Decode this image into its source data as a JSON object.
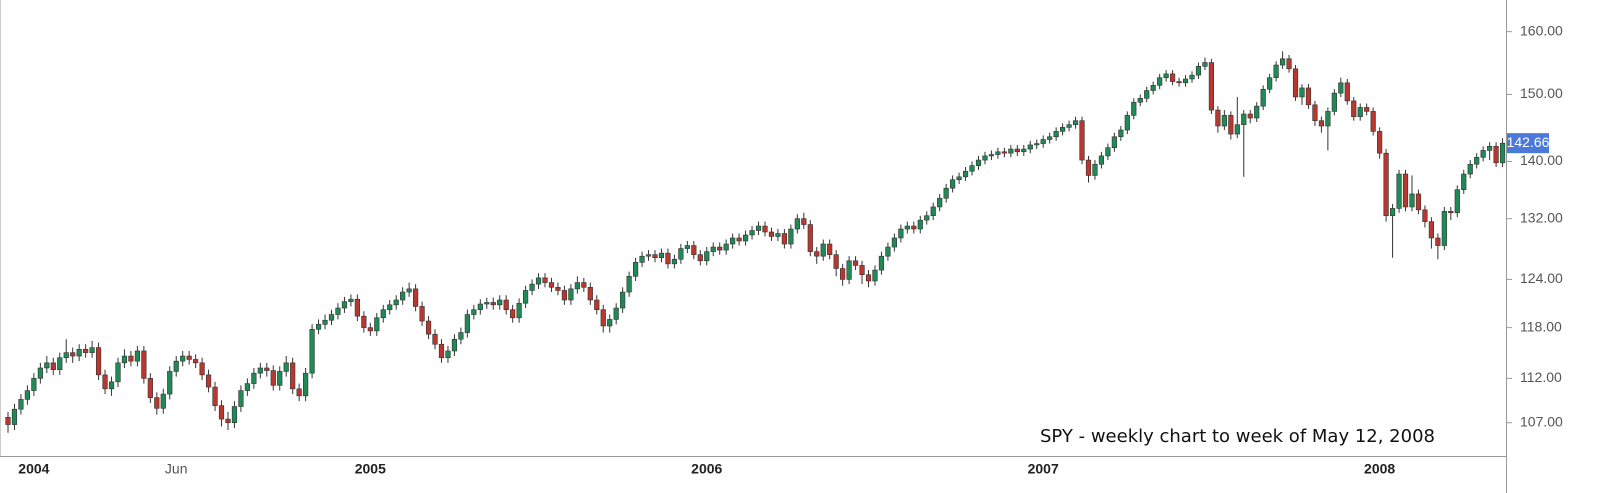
{
  "chart_data": {
    "type": "candlestick",
    "annotation": "SPY - weekly chart to week of May 12, 2008",
    "log_scale": true,
    "grid": false,
    "up_color": "#1f8a55",
    "down_color": "#b8372e",
    "ylim": [
      103.4,
      165.3
    ],
    "yticks": [
      {
        "value": 107,
        "label": "107.00"
      },
      {
        "value": 112,
        "label": "112.00"
      },
      {
        "value": 118,
        "label": "118.00"
      },
      {
        "value": 124,
        "label": "124.00"
      },
      {
        "value": 132,
        "label": "132.00"
      },
      {
        "value": 140,
        "label": "140.00"
      },
      {
        "value": 150,
        "label": "150.00"
      },
      {
        "value": 160,
        "label": "160.00"
      }
    ],
    "categories": [
      null,
      null,
      null,
      null,
      "2004",
      null,
      null,
      null,
      null,
      null,
      null,
      null,
      null,
      null,
      null,
      null,
      null,
      null,
      null,
      null,
      null,
      null,
      null,
      null,
      null,
      null,
      "Jun",
      null,
      null,
      null,
      null,
      null,
      null,
      null,
      null,
      null,
      null,
      null,
      null,
      null,
      null,
      null,
      null,
      null,
      null,
      null,
      null,
      null,
      null,
      null,
      null,
      null,
      null,
      null,
      null,
      null,
      "2005",
      null,
      null,
      null,
      null,
      null,
      null,
      null,
      null,
      null,
      null,
      null,
      null,
      null,
      null,
      null,
      null,
      null,
      null,
      null,
      null,
      null,
      null,
      null,
      null,
      null,
      null,
      null,
      null,
      null,
      null,
      null,
      null,
      null,
      null,
      null,
      null,
      null,
      null,
      null,
      null,
      null,
      null,
      null,
      null,
      null,
      null,
      null,
      null,
      null,
      null,
      null,
      "2006",
      null,
      null,
      null,
      null,
      null,
      null,
      null,
      null,
      null,
      null,
      null,
      null,
      null,
      null,
      null,
      null,
      null,
      null,
      null,
      null,
      null,
      null,
      null,
      null,
      null,
      null,
      null,
      null,
      null,
      null,
      null,
      null,
      null,
      null,
      null,
      null,
      null,
      null,
      null,
      null,
      null,
      null,
      null,
      null,
      null,
      null,
      null,
      null,
      null,
      null,
      null,
      "2007",
      null,
      null,
      null,
      null,
      null,
      null,
      null,
      null,
      null,
      null,
      null,
      null,
      null,
      null,
      null,
      null,
      null,
      null,
      null,
      null,
      null,
      null,
      null,
      null,
      null,
      null,
      null,
      null,
      null,
      null,
      null,
      null,
      null,
      null,
      null,
      null,
      null,
      null,
      null,
      null,
      null,
      null,
      null,
      null,
      null,
      null,
      null,
      null,
      null,
      null,
      null,
      "2008",
      null,
      null,
      null,
      null,
      null,
      null,
      null,
      null,
      null,
      null,
      null,
      null,
      null,
      null,
      null,
      null,
      null,
      null,
      null
    ],
    "open": [
      107.6,
      106.8,
      108.5,
      109.6,
      110.6,
      112.0,
      113.2,
      113.8,
      113.0,
      114.4,
      115.0,
      114.6,
      115.4,
      115.0,
      115.6,
      112.4,
      110.8,
      111.6,
      113.8,
      114.6,
      114.0,
      115.2,
      112.0,
      109.8,
      108.6,
      110.2,
      112.8,
      114.0,
      114.6,
      114.2,
      113.8,
      112.4,
      111.0,
      108.9,
      107.4,
      107.0,
      108.8,
      110.6,
      111.4,
      112.6,
      113.2,
      112.9,
      111.2,
      112.8,
      113.8,
      110.8,
      110.0,
      112.6,
      117.8,
      118.4,
      118.9,
      119.6,
      120.4,
      121.2,
      121.5,
      119.4,
      118.0,
      117.6,
      119.2,
      120.2,
      120.8,
      121.4,
      122.4,
      122.8,
      120.6,
      118.8,
      117.2,
      116.0,
      114.4,
      115.2,
      116.6,
      117.4,
      119.6,
      120.2,
      120.9,
      121.1,
      120.8,
      121.4,
      120.2,
      119.2,
      121.0,
      122.6,
      123.4,
      124.2,
      123.6,
      123.0,
      122.6,
      121.4,
      122.8,
      123.6,
      123.0,
      121.4,
      120.2,
      118.2,
      119.0,
      120.4,
      122.4,
      124.4,
      126.2,
      127.0,
      127.2,
      126.8,
      127.4,
      126.0,
      126.6,
      128.0,
      128.4,
      127.2,
      126.4,
      127.6,
      128.2,
      127.8,
      128.6,
      129.4,
      129.0,
      129.8,
      130.4,
      131.0,
      130.2,
      129.6,
      130.0,
      128.6,
      130.6,
      132.0,
      131.2,
      127.6,
      127.0,
      128.6,
      127.2,
      125.4,
      124.0,
      126.4,
      125.8,
      124.6,
      123.8,
      125.2,
      127.0,
      128.2,
      129.4,
      130.6,
      131.0,
      130.6,
      131.8,
      132.4,
      133.6,
      134.8,
      136.2,
      137.4,
      137.8,
      138.6,
      139.4,
      140.2,
      140.8,
      141.0,
      141.4,
      141.2,
      141.8,
      141.4,
      141.8,
      142.4,
      142.6,
      143.2,
      143.6,
      144.4,
      145.0,
      145.4,
      146.0,
      140.2,
      138.0,
      139.6,
      140.8,
      142.0,
      143.6,
      144.6,
      146.8,
      148.8,
      149.4,
      150.6,
      151.4,
      152.6,
      153.2,
      152.0,
      151.8,
      152.4,
      153.0,
      154.4,
      155.0,
      147.6,
      145.2,
      146.8,
      144.0,
      145.4,
      147.0,
      146.4,
      148.2,
      150.8,
      152.6,
      154.6,
      155.6,
      154.0,
      149.6,
      151.0,
      148.4,
      146.0,
      145.2,
      147.4,
      150.2,
      151.8,
      149.0,
      146.6,
      148.0,
      147.4,
      144.4,
      141.2,
      132.4,
      133.4,
      138.2,
      133.6,
      135.4,
      133.2,
      131.6,
      129.4,
      128.4,
      133.0,
      132.8,
      136.0,
      138.2,
      139.6,
      140.6,
      141.6,
      142.2,
      139.8
    ],
    "high": [
      108.2,
      109.1,
      110.2,
      111.2,
      112.6,
      113.8,
      114.6,
      114.4,
      115.0,
      116.6,
      115.6,
      116.0,
      116.0,
      116.4,
      116.2,
      113.0,
      112.2,
      114.4,
      115.4,
      115.2,
      115.8,
      115.8,
      112.6,
      110.4,
      110.8,
      113.4,
      114.6,
      115.2,
      115.2,
      114.8,
      114.4,
      113.0,
      111.6,
      109.5,
      108.2,
      109.4,
      111.2,
      112.0,
      113.2,
      113.8,
      113.8,
      113.5,
      113.4,
      114.6,
      114.4,
      111.4,
      113.2,
      118.4,
      119.0,
      119.6,
      120.2,
      121.0,
      121.8,
      122.1,
      122.1,
      120.0,
      118.6,
      119.8,
      120.8,
      121.4,
      122.0,
      123.0,
      123.6,
      123.4,
      121.2,
      119.4,
      117.8,
      116.6,
      115.8,
      117.2,
      118.0,
      120.2,
      120.8,
      121.5,
      121.7,
      121.7,
      122.0,
      122.0,
      120.8,
      121.6,
      123.2,
      124.0,
      124.8,
      124.8,
      124.2,
      123.6,
      123.2,
      123.4,
      124.4,
      124.2,
      123.6,
      122.0,
      120.8,
      119.6,
      121.0,
      123.0,
      125.0,
      126.8,
      127.6,
      127.8,
      127.8,
      128.0,
      128.0,
      127.2,
      128.6,
      129.0,
      129.0,
      127.8,
      128.2,
      128.8,
      128.8,
      129.2,
      130.0,
      130.0,
      130.4,
      131.0,
      131.6,
      131.6,
      130.8,
      130.6,
      130.6,
      131.2,
      132.6,
      132.8,
      131.8,
      128.2,
      129.2,
      129.2,
      127.8,
      126.0,
      127.0,
      127.0,
      126.4,
      125.2,
      125.8,
      127.6,
      128.8,
      130.0,
      131.2,
      131.6,
      131.6,
      132.4,
      133.0,
      134.2,
      135.4,
      136.8,
      138.0,
      138.4,
      139.2,
      140.0,
      140.8,
      141.4,
      141.6,
      142.0,
      142.0,
      142.4,
      142.4,
      142.4,
      143.0,
      143.2,
      143.8,
      144.2,
      145.0,
      145.6,
      146.0,
      146.6,
      146.6,
      140.8,
      140.2,
      141.4,
      142.6,
      144.2,
      145.2,
      147.4,
      149.4,
      150.0,
      151.2,
      152.0,
      153.2,
      153.8,
      153.8,
      152.6,
      153.0,
      153.6,
      155.0,
      155.8,
      155.6,
      148.2,
      147.6,
      147.4,
      149.6,
      147.6,
      147.6,
      148.8,
      151.4,
      153.2,
      155.2,
      156.8,
      156.2,
      154.6,
      151.6,
      151.6,
      149.0,
      146.6,
      148.0,
      150.8,
      152.6,
      152.4,
      149.6,
      148.6,
      148.6,
      148.0,
      145.0,
      141.8,
      134.0,
      138.8,
      138.8,
      138.0,
      136.0,
      133.8,
      132.2,
      130.0,
      133.6,
      133.6,
      136.6,
      138.8,
      140.2,
      141.2,
      142.2,
      142.8,
      142.8,
      143.4
    ],
    "low": [
      105.9,
      106.2,
      107.9,
      109.0,
      110.0,
      111.4,
      112.6,
      112.4,
      112.4,
      113.8,
      113.8,
      114.0,
      114.4,
      114.4,
      111.8,
      110.2,
      110.0,
      111.0,
      113.2,
      113.4,
      113.4,
      111.4,
      109.2,
      107.9,
      108.0,
      109.6,
      112.2,
      113.4,
      113.6,
      113.2,
      111.8,
      110.4,
      108.3,
      106.6,
      106.2,
      106.4,
      108.2,
      110.0,
      110.8,
      112.0,
      112.2,
      110.6,
      110.6,
      112.2,
      110.2,
      109.4,
      109.4,
      112.0,
      117.2,
      117.8,
      118.3,
      119.0,
      119.8,
      120.6,
      118.8,
      117.4,
      117.0,
      117.0,
      118.6,
      119.6,
      120.2,
      120.8,
      121.8,
      120.0,
      118.2,
      116.6,
      115.4,
      113.8,
      113.8,
      114.6,
      116.0,
      116.8,
      119.0,
      119.6,
      120.3,
      120.2,
      120.2,
      119.6,
      118.6,
      118.6,
      120.4,
      122.0,
      122.8,
      123.0,
      122.4,
      122.0,
      120.8,
      120.8,
      122.2,
      122.4,
      120.8,
      119.6,
      117.4,
      117.4,
      118.4,
      119.8,
      121.8,
      123.8,
      125.6,
      126.4,
      126.2,
      126.2,
      125.4,
      125.4,
      126.0,
      127.4,
      126.6,
      125.8,
      125.8,
      127.0,
      127.2,
      127.2,
      128.0,
      128.4,
      128.4,
      129.2,
      129.8,
      129.6,
      129.0,
      129.0,
      128.0,
      128.0,
      130.0,
      130.6,
      127.0,
      126.0,
      126.4,
      126.6,
      124.4,
      123.2,
      123.4,
      125.2,
      123.4,
      123.0,
      123.2,
      124.6,
      126.4,
      127.6,
      128.8,
      130.0,
      130.0,
      130.0,
      131.2,
      131.8,
      133.0,
      134.2,
      135.6,
      136.8,
      137.2,
      138.0,
      138.8,
      139.6,
      140.2,
      140.4,
      140.6,
      140.6,
      140.8,
      140.8,
      141.2,
      141.8,
      142.0,
      142.6,
      143.0,
      143.8,
      144.4,
      144.8,
      139.6,
      137.0,
      137.4,
      139.0,
      140.2,
      141.4,
      143.0,
      144.0,
      146.2,
      148.2,
      148.8,
      150.0,
      150.8,
      152.0,
      151.4,
      151.2,
      151.2,
      151.8,
      152.4,
      153.8,
      147.0,
      144.2,
      144.6,
      143.2,
      143.4,
      137.8,
      145.6,
      145.8,
      147.6,
      150.2,
      152.0,
      154.0,
      153.4,
      149.0,
      148.4,
      147.8,
      145.2,
      144.2,
      141.6,
      146.8,
      149.6,
      148.4,
      146.0,
      146.0,
      146.8,
      143.8,
      140.4,
      131.6,
      126.8,
      132.8,
      133.0,
      133.0,
      132.6,
      130.8,
      128.0,
      126.6,
      127.8,
      131.8,
      132.2,
      135.4,
      137.6,
      139.0,
      140.0,
      140.2,
      139.2,
      139.2
    ],
    "close": [
      106.8,
      108.5,
      109.6,
      110.6,
      112.0,
      113.2,
      113.8,
      113.0,
      114.4,
      115.0,
      114.6,
      115.4,
      115.0,
      115.6,
      112.4,
      110.8,
      111.6,
      113.8,
      114.6,
      114.0,
      115.2,
      112.0,
      109.8,
      108.6,
      110.2,
      112.8,
      114.0,
      114.6,
      114.2,
      113.8,
      112.4,
      111.0,
      108.9,
      107.4,
      107.0,
      108.8,
      110.6,
      111.4,
      112.6,
      113.2,
      112.9,
      111.2,
      112.8,
      113.8,
      110.8,
      110.0,
      112.6,
      117.8,
      118.4,
      118.9,
      119.6,
      120.4,
      121.2,
      121.5,
      119.4,
      118.0,
      117.6,
      119.2,
      120.2,
      120.8,
      121.4,
      122.4,
      122.8,
      120.6,
      118.8,
      117.2,
      116.0,
      114.4,
      115.2,
      116.6,
      117.4,
      119.6,
      120.2,
      120.9,
      121.1,
      120.8,
      121.4,
      120.2,
      119.2,
      121.0,
      122.6,
      123.4,
      124.2,
      123.6,
      123.0,
      122.6,
      121.4,
      122.8,
      123.6,
      123.0,
      121.4,
      120.2,
      118.2,
      119.0,
      120.4,
      122.4,
      124.4,
      126.2,
      127.0,
      127.2,
      126.8,
      127.4,
      126.0,
      126.6,
      128.0,
      128.4,
      127.2,
      126.4,
      127.6,
      128.2,
      127.8,
      128.6,
      129.4,
      129.0,
      129.8,
      130.4,
      131.0,
      130.2,
      129.6,
      130.0,
      128.6,
      130.6,
      132.0,
      131.2,
      127.6,
      127.0,
      128.6,
      127.2,
      125.4,
      124.0,
      126.4,
      125.8,
      124.6,
      123.8,
      125.2,
      127.0,
      128.2,
      129.4,
      130.6,
      131.0,
      130.6,
      131.8,
      132.4,
      133.6,
      134.8,
      136.2,
      137.4,
      137.8,
      138.6,
      139.4,
      140.2,
      140.8,
      141.0,
      141.4,
      141.2,
      141.8,
      141.4,
      141.8,
      142.4,
      142.6,
      143.2,
      143.6,
      144.4,
      145.0,
      145.4,
      146.0,
      140.2,
      138.0,
      139.6,
      140.8,
      142.0,
      143.6,
      144.6,
      146.8,
      148.8,
      149.4,
      150.6,
      151.4,
      152.6,
      153.2,
      152.0,
      151.8,
      152.4,
      153.0,
      154.4,
      155.0,
      147.6,
      145.2,
      146.8,
      144.0,
      145.4,
      147.0,
      146.4,
      148.2,
      150.8,
      152.6,
      154.6,
      155.6,
      154.0,
      149.6,
      151.0,
      148.4,
      146.0,
      145.2,
      147.4,
      150.2,
      151.8,
      149.0,
      146.6,
      148.0,
      147.4,
      144.4,
      141.2,
      132.4,
      133.4,
      138.2,
      133.6,
      135.4,
      133.2,
      131.6,
      129.4,
      128.4,
      133.0,
      132.8,
      136.0,
      138.2,
      139.6,
      140.6,
      141.6,
      142.2,
      139.8,
      142.66
    ]
  }
}
